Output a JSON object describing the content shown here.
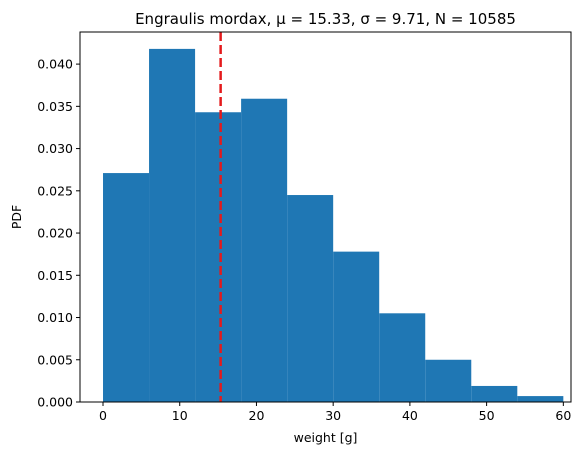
{
  "chart_data": {
    "type": "histogram",
    "title": "Engraulis mordax, μ = 15.33, σ = 9.71, N = 10585",
    "xlabel": "weight [g]",
    "ylabel": "PDF",
    "xlim": [
      -3,
      61
    ],
    "ylim": [
      0,
      0.0438
    ],
    "x_ticks": [
      0,
      10,
      20,
      30,
      40,
      50,
      60
    ],
    "x_tick_labels": [
      "0",
      "10",
      "20",
      "30",
      "40",
      "50",
      "60"
    ],
    "y_ticks": [
      0,
      0.005,
      0.01,
      0.015,
      0.02,
      0.025,
      0.03,
      0.035,
      0.04
    ],
    "y_tick_labels": [
      "0.000",
      "0.005",
      "0.010",
      "0.015",
      "0.020",
      "0.025",
      "0.030",
      "0.035",
      "0.040"
    ],
    "bins": [
      {
        "x0": 0,
        "x1": 6,
        "value": 0.0271
      },
      {
        "x0": 6,
        "x1": 12,
        "value": 0.0418
      },
      {
        "x0": 12,
        "x1": 18,
        "value": 0.0343
      },
      {
        "x0": 18,
        "x1": 24,
        "value": 0.0359
      },
      {
        "x0": 24,
        "x1": 30,
        "value": 0.0245
      },
      {
        "x0": 30,
        "x1": 36,
        "value": 0.0178
      },
      {
        "x0": 36,
        "x1": 42,
        "value": 0.0105
      },
      {
        "x0": 42,
        "x1": 48,
        "value": 0.005
      },
      {
        "x0": 48,
        "x1": 54,
        "value": 0.0019
      },
      {
        "x0": 54,
        "x1": 60,
        "value": 0.0007
      },
      {
        "x0": 60,
        "x1": 66,
        "value": 5e-05
      }
    ],
    "mean_line": {
      "x": 15.33,
      "color": "#e41a1c",
      "style": "dashed"
    },
    "bar_color": "#1f77b4",
    "grid": false,
    "legend": "none"
  }
}
